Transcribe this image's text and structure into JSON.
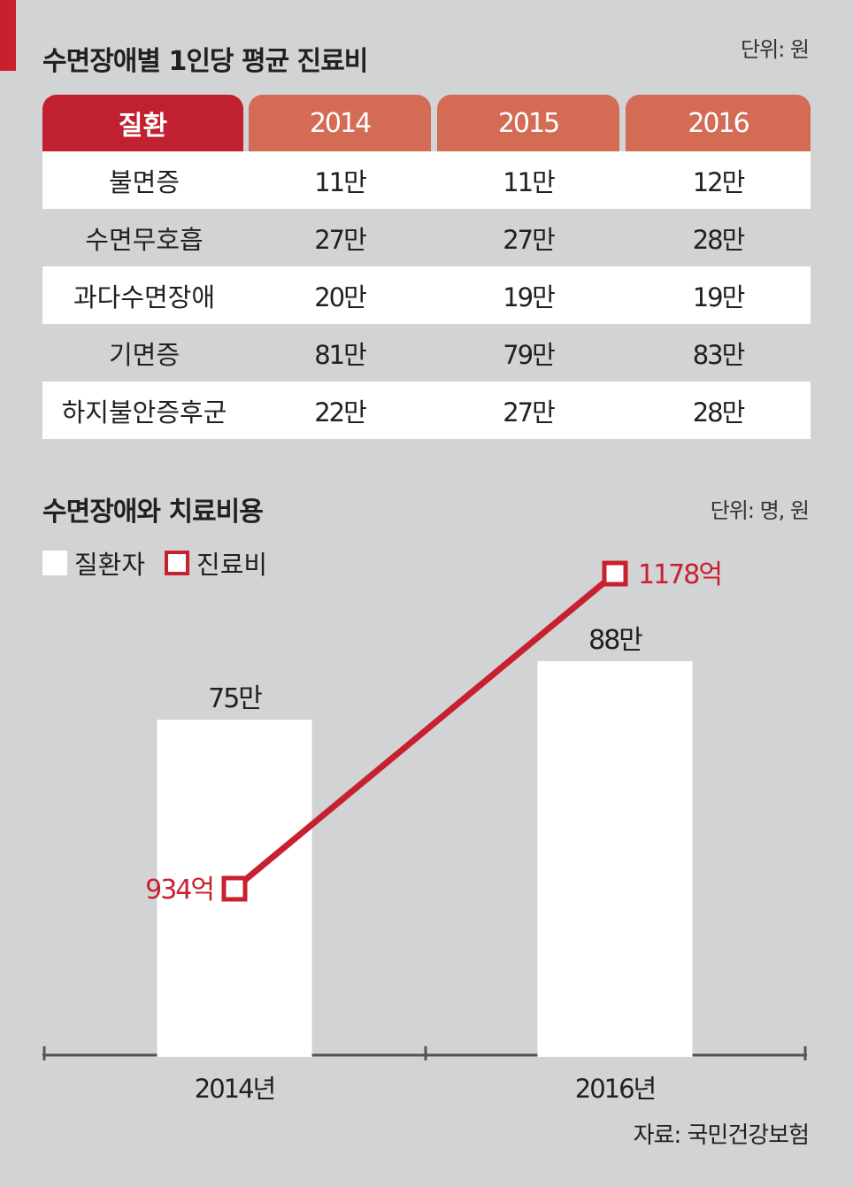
{
  "table_section": {
    "title": "수면장애별 1인당 평균 진료비",
    "unit": "단위: 원",
    "header": [
      "질환",
      "2014",
      "2015",
      "2016"
    ],
    "rows": [
      [
        "불면증",
        "11만",
        "11만",
        "12만"
      ],
      [
        "수면무호흡",
        "27만",
        "27만",
        "28만"
      ],
      [
        "과다수면장애",
        "20만",
        "19만",
        "19만"
      ],
      [
        "기면증",
        "81만",
        "79만",
        "83만"
      ],
      [
        "하지불안증후군",
        "22만",
        "27만",
        "28만"
      ]
    ]
  },
  "chart_section": {
    "title": "수면장애와 치료비용",
    "unit": "단위: 명, 원",
    "legend": [
      "질환자",
      "진료비"
    ]
  },
  "source": "자료: 국민건강보험",
  "colors": {
    "accent": "#c8202f",
    "header_year": "#d36b55",
    "background": "#d2d3d5",
    "bar": "#ffffff"
  },
  "chart_data": {
    "type": "bar",
    "categories": [
      "2014년",
      "2016년"
    ],
    "series": [
      {
        "name": "질환자",
        "type": "bar",
        "values": [
          750000,
          880000
        ],
        "labels": [
          "75만",
          "88만"
        ]
      },
      {
        "name": "진료비",
        "type": "line",
        "values": [
          934,
          1178
        ],
        "labels": [
          "934억",
          "1178억"
        ]
      }
    ]
  }
}
